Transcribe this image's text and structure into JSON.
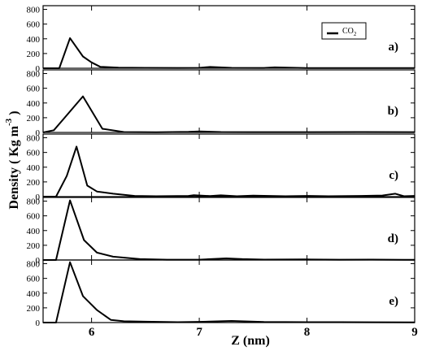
{
  "chart_data": {
    "type": "line",
    "xlabel": "Z (nm)",
    "ylabel": "Density ( Kg m",
    "ylabel_sup": "-3",
    "ylabel_close": ")",
    "xlim": [
      5.55,
      9.0
    ],
    "xticks": [
      6,
      7,
      8,
      9
    ],
    "ylim": [
      0,
      850
    ],
    "yticks": [
      0,
      200,
      400,
      600,
      800
    ],
    "legend": {
      "label_main": "CO",
      "label_sub": "2",
      "position": "top-right"
    },
    "panels": [
      {
        "label": "a)",
        "x": [
          5.55,
          5.7,
          5.8,
          5.92,
          6.0,
          6.08,
          6.25,
          6.5,
          6.8,
          7.0,
          7.1,
          7.3,
          7.6,
          7.7,
          8.0,
          8.3,
          8.6,
          8.9,
          9.0
        ],
        "y": [
          0,
          0,
          410,
          160,
          80,
          20,
          8,
          5,
          4,
          6,
          18,
          5,
          4,
          12,
          3,
          2,
          2,
          3,
          2
        ]
      },
      {
        "label": "b)",
        "x": [
          5.55,
          5.65,
          5.75,
          5.92,
          6.1,
          6.3,
          6.6,
          6.9,
          7.0,
          7.2,
          7.5,
          8.0,
          8.5,
          9.0
        ],
        "y": [
          0,
          30,
          200,
          490,
          50,
          5,
          3,
          8,
          14,
          5,
          4,
          4,
          6,
          4
        ]
      },
      {
        "label": "c)",
        "x": [
          5.55,
          5.67,
          5.77,
          5.86,
          5.96,
          6.05,
          6.2,
          6.4,
          6.6,
          6.9,
          6.95,
          7.1,
          7.2,
          7.35,
          7.5,
          7.8,
          8.0,
          8.2,
          8.5,
          8.7,
          8.82,
          8.9,
          9.0
        ],
        "y": [
          0,
          0,
          280,
          680,
          150,
          70,
          40,
          10,
          5,
          10,
          20,
          8,
          18,
          6,
          14,
          6,
          10,
          6,
          10,
          15,
          40,
          5,
          10
        ]
      },
      {
        "label": "d)",
        "x": [
          5.55,
          5.67,
          5.8,
          5.93,
          6.05,
          6.2,
          6.45,
          6.7,
          7.0,
          7.25,
          7.4,
          7.6,
          8.0,
          8.3,
          8.6,
          8.9,
          9.0
        ],
        "y": [
          0,
          0,
          810,
          270,
          100,
          45,
          12,
          4,
          4,
          22,
          12,
          6,
          8,
          4,
          6,
          3,
          3
        ]
      },
      {
        "label": "e)",
        "x": [
          5.55,
          5.67,
          5.8,
          5.92,
          6.05,
          6.18,
          6.3,
          6.5,
          6.8,
          7.0,
          7.3,
          7.6,
          8.0,
          8.3,
          8.6,
          9.0
        ],
        "y": [
          0,
          0,
          820,
          360,
          170,
          35,
          18,
          12,
          5,
          10,
          22,
          8,
          5,
          6,
          4,
          3
        ]
      }
    ]
  }
}
